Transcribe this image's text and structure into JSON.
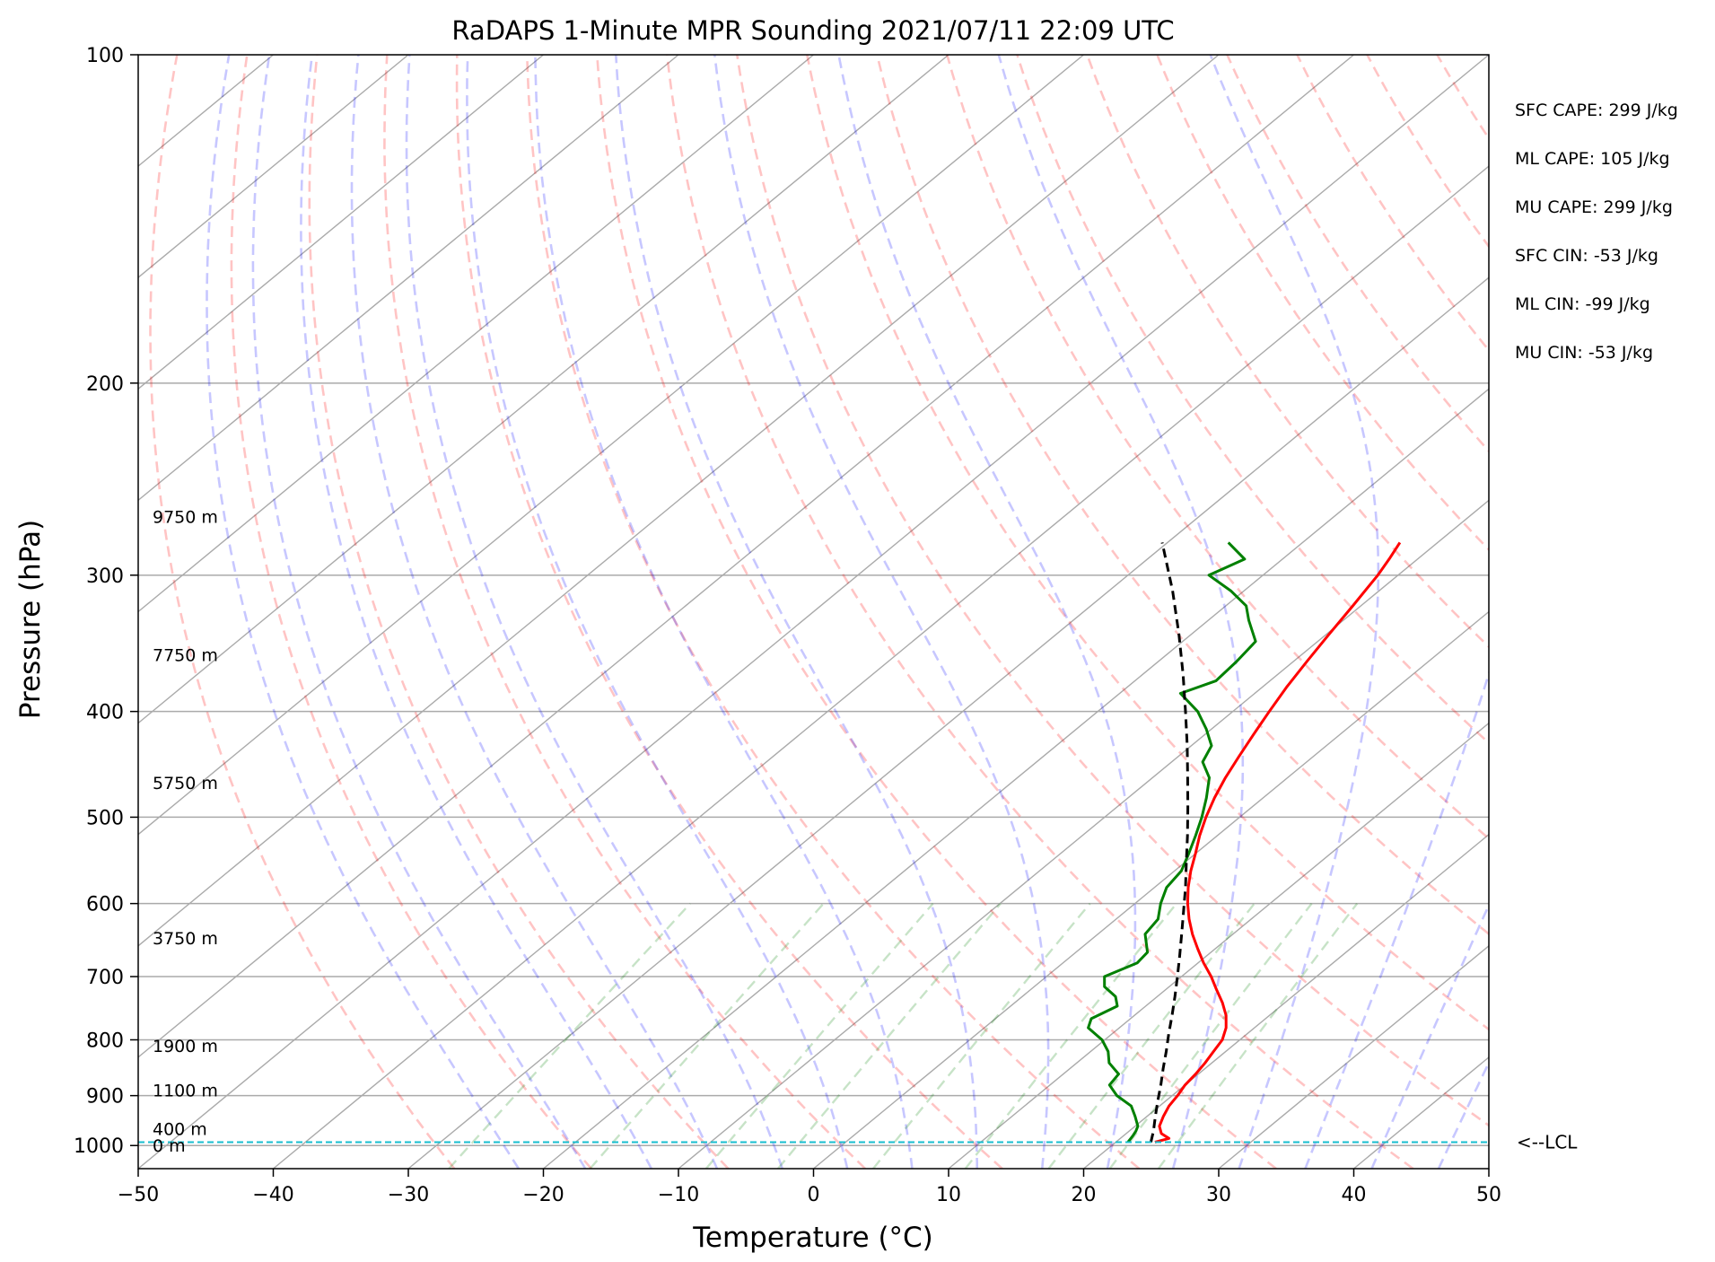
{
  "chart_data": {
    "type": "skew-t",
    "title": "RaDAPS 1-Minute MPR Sounding 2021/07/11 22:09 UTC",
    "xlabel": "Temperature (°C)",
    "ylabel": "Pressure (hPa)",
    "xlim": [
      -50,
      50
    ],
    "ylim": [
      1050,
      100
    ],
    "y_scale": "log",
    "x_ticks": [
      -50,
      -40,
      -30,
      -20,
      -10,
      0,
      10,
      20,
      30,
      40,
      50
    ],
    "x_tick_labels": [
      "−50",
      "−40",
      "−30",
      "−20",
      "−10",
      "0",
      "10",
      "20",
      "30",
      "40",
      "50"
    ],
    "y_ticks": [
      100,
      200,
      300,
      400,
      500,
      600,
      700,
      800,
      900,
      1000
    ],
    "y_tick_labels": [
      "100",
      "200",
      "300",
      "400",
      "500",
      "600",
      "700",
      "800",
      "900",
      "1000"
    ],
    "grid": true,
    "height_labels": [
      {
        "p": 1000,
        "text": "0 m"
      },
      {
        "p": 965,
        "text": "400 m"
      },
      {
        "p": 890,
        "text": "1100 m"
      },
      {
        "p": 810,
        "text": "1900 m"
      },
      {
        "p": 645,
        "text": "3750 m"
      },
      {
        "p": 465,
        "text": "5750 m"
      },
      {
        "p": 355,
        "text": "7750 m"
      },
      {
        "p": 265,
        "text": "9750 m"
      }
    ],
    "indices": [
      {
        "label": "SFC CAPE: 299 J/kg"
      },
      {
        "label": "ML CAPE: 105 J/kg"
      },
      {
        "label": "MU CAPE: 299 J/kg"
      },
      {
        "label": "SFC CIN: -53 J/kg"
      },
      {
        "label": "ML CIN: -99 J/kg"
      },
      {
        "label": "MU CIN: -53 J/kg"
      }
    ],
    "lcl": {
      "pressure": 993,
      "label": "<--LCL"
    },
    "series": [
      {
        "key": "temperature",
        "color": "#ff0000",
        "p": [
          993,
          985,
          975,
          960,
          940,
          920,
          900,
          880,
          860,
          840,
          820,
          800,
          780,
          760,
          740,
          720,
          700,
          680,
          660,
          640,
          620,
          600,
          580,
          560,
          540,
          520,
          500,
          480,
          460,
          440,
          420,
          400,
          380,
          360,
          340,
          320,
          300,
          290,
          280
        ],
        "t": [
          22.9,
          23.6,
          22.6,
          21.8,
          21.2,
          20.7,
          20.4,
          20.0,
          19.8,
          19.5,
          19.1,
          18.7,
          17.9,
          16.8,
          15.4,
          13.8,
          12.2,
          10.4,
          8.7,
          7.0,
          5.4,
          3.9,
          2.5,
          1.2,
          0.0,
          -1.3,
          -2.5,
          -3.6,
          -4.6,
          -5.5,
          -6.4,
          -7.3,
          -8.2,
          -9.0,
          -9.8,
          -10.6,
          -11.5,
          -12.1,
          -12.8
        ]
      },
      {
        "key": "dewpoint",
        "color": "#008000",
        "p": [
          993,
          980,
          970,
          960,
          940,
          920,
          900,
          880,
          860,
          840,
          820,
          800,
          780,
          765,
          745,
          730,
          715,
          700,
          680,
          665,
          640,
          620,
          600,
          580,
          560,
          540,
          520,
          500,
          480,
          460,
          445,
          430,
          415,
          400,
          385,
          375,
          360,
          345,
          330,
          320,
          310,
          300,
          290,
          280
        ],
        "t": [
          20.9,
          20.7,
          20.5,
          20.2,
          19.1,
          17.9,
          15.9,
          14.4,
          14.1,
          12.4,
          11.3,
          9.8,
          7.7,
          7.1,
          7.9,
          6.9,
          5.2,
          4.3,
          5.5,
          5.3,
          3.5,
          3.1,
          1.9,
          0.9,
          0.5,
          -0.5,
          -1.6,
          -2.8,
          -4.2,
          -5.8,
          -7.7,
          -8.5,
          -10.4,
          -12.6,
          -15.5,
          -14.0,
          -14.2,
          -14.6,
          -17.0,
          -18.5,
          -21.0,
          -24.0,
          -22.8,
          -25.5
        ]
      },
      {
        "key": "parcel",
        "color": "#000000",
        "dashed": true,
        "p": [
          993,
          970,
          940,
          910,
          880,
          850,
          820,
          790,
          760,
          730,
          700,
          670,
          640,
          610,
          580,
          550,
          520,
          490,
          460,
          430,
          400,
          370,
          340,
          310,
          280
        ],
        "t": [
          22.6,
          21.8,
          20.6,
          19.4,
          18.2,
          16.9,
          15.6,
          14.2,
          12.8,
          11.3,
          9.7,
          8.0,
          6.2,
          4.3,
          2.3,
          0.1,
          -2.2,
          -4.7,
          -7.4,
          -10.3,
          -13.5,
          -17.0,
          -20.9,
          -25.3,
          -30.4
        ]
      }
    ]
  }
}
